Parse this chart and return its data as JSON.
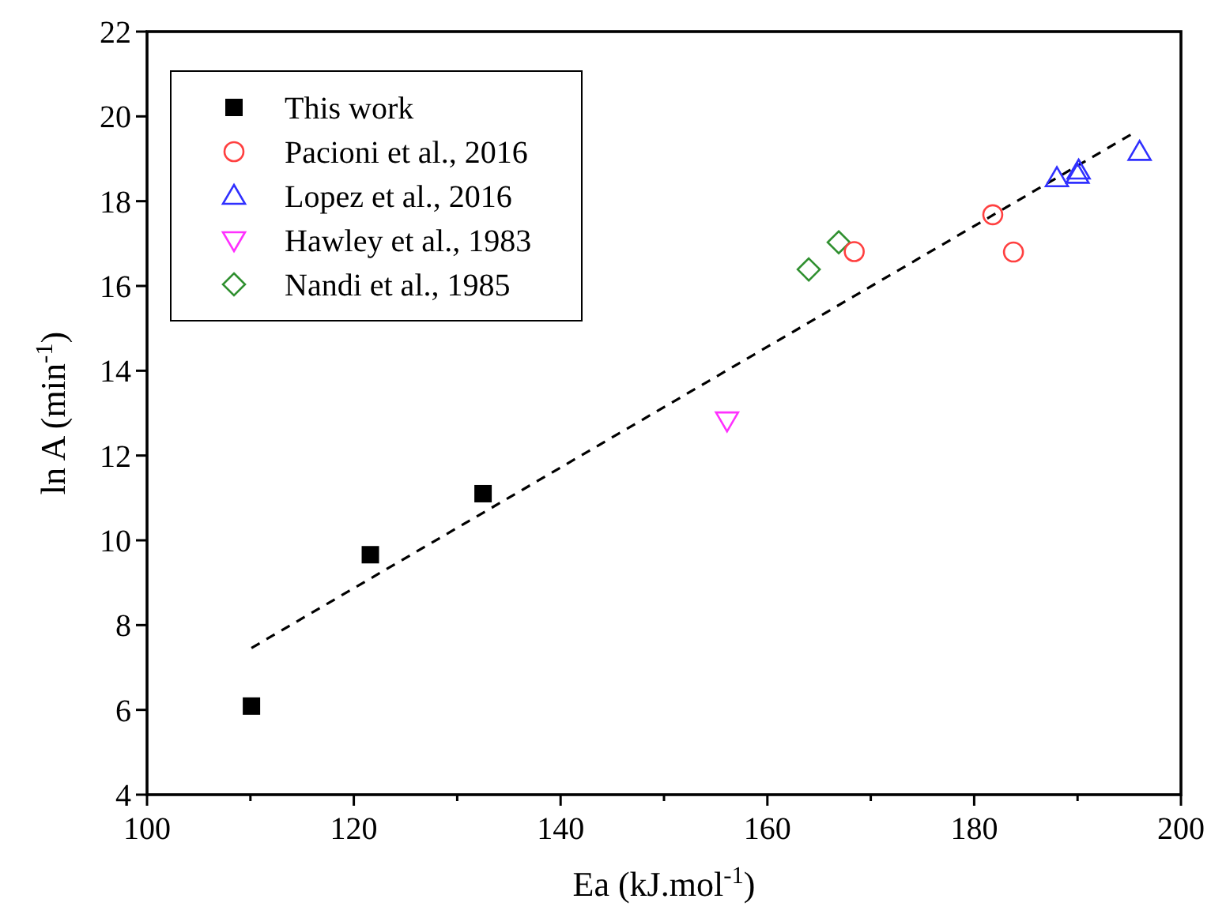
{
  "chart_data": {
    "type": "scatter",
    "xlabel": "Ea (kJ.mol$^{-1}$)",
    "ylabel": "ln A (min$^{-1}$)",
    "xlim": [
      100,
      200
    ],
    "ylim": [
      4,
      22
    ],
    "xticks": [
      100,
      {
        "value": 110,
        "label": null
      },
      120,
      {
        "value": 130,
        "label": null
      },
      140,
      {
        "value": 150,
        "label": null
      },
      160,
      {
        "value": 170,
        "label": null
      },
      180,
      {
        "value": 190,
        "label": null
      },
      200
    ],
    "yticks": [
      4,
      6,
      8,
      10,
      12,
      14,
      16,
      18,
      20,
      22
    ],
    "legend": "top left",
    "grid": false,
    "series": [
      {
        "name": "This work",
        "color": "#000000",
        "marker": "square",
        "x": [
          110.1,
          121.6,
          132.5
        ],
        "values": [
          6.09,
          9.66,
          11.1
        ]
      },
      {
        "name": "Pacioni et al., 2016",
        "color": "#ff4040",
        "marker": "circle",
        "x": [
          168.4,
          181.8,
          183.8
        ],
        "values": [
          16.81,
          17.68,
          16.8
        ]
      },
      {
        "name": "Lopez et al., 2016",
        "color": "#3030ff",
        "marker": "triangle",
        "x": [
          188,
          190,
          190.1,
          196
        ],
        "values": [
          18.54,
          18.62,
          18.72,
          19.16
        ]
      },
      {
        "name": "Hawley et al., 1983",
        "color": "#ff30ff",
        "marker": "triangle-down",
        "x": [
          156.1
        ],
        "values": [
          12.83
        ]
      },
      {
        "name": "Nandi et al., 1985",
        "color": "#309030",
        "marker": "diamond",
        "x": [
          164,
          166.9
        ],
        "values": [
          16.39,
          17.03
        ]
      },
      {
        "type": "line",
        "color": "#000000",
        "line_style": "dashed",
        "marker": "none",
        "x": [
          110.1,
          195.5
        ],
        "values": [
          7.46,
          19.62
        ]
      }
    ]
  }
}
